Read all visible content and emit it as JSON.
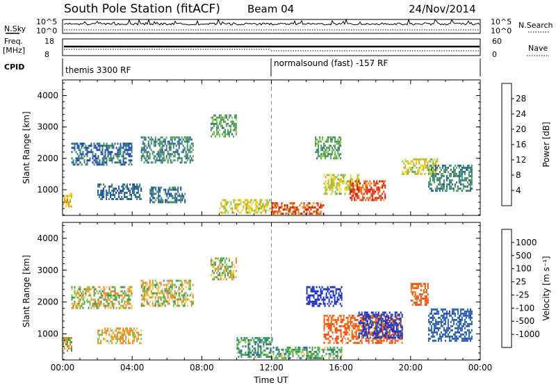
{
  "header": {
    "title": "South Pole Station (fitACF)",
    "beam": "Beam 04",
    "date": "24/Nov/2014"
  },
  "labels": {
    "nsky": "N.Sky",
    "nsearch": "N.Search",
    "freq_line1": "Freq.",
    "freq_line2": "[MHz]",
    "nave": "Nave",
    "cpid": "CPID",
    "nsky_ticks": [
      "10^5",
      "10^0"
    ],
    "nsearch_ticks": [
      "10^5",
      "10^0"
    ],
    "freq_ticks": [
      "18",
      "8"
    ],
    "nave_ticks": [
      "60",
      "0"
    ]
  },
  "cpid_programs": [
    {
      "label": "themis 3300 RF",
      "start": "00:00",
      "end": "12:00"
    },
    {
      "label": "normalsound (fast) -157 RF",
      "start": "12:00",
      "end": "24:00"
    }
  ],
  "colors": {
    "power": [
      "#1a1aff",
      "#1f3fbf",
      "#2a5f9f",
      "#3a8a6a",
      "#5aa05a",
      "#8cc840",
      "#f0d020",
      "#f5a010",
      "#f06a10",
      "#e83010",
      "#d01010"
    ],
    "velocity": [
      "#e01010",
      "#f05010",
      "#f08a20",
      "#f5c040",
      "#c8c8c0",
      "#c8c8c0",
      "#70c040",
      "#3a9a5a",
      "#2a5fae",
      "#1a2fc0"
    ]
  },
  "chart_data": [
    {
      "type": "heatmap",
      "name": "power",
      "xlabel": "",
      "ylabel": "Slant Range [km]",
      "x_range": [
        "00:00",
        "24:00"
      ],
      "xlim": [
        0,
        24
      ],
      "ylim": [
        180,
        4500
      ],
      "y_ticks": [
        1000,
        2000,
        3000,
        4000
      ],
      "colorbar": {
        "label": "Power [dB]",
        "ticks": [
          4,
          8,
          12,
          16,
          20,
          24,
          28
        ],
        "range": [
          0,
          32
        ]
      },
      "regions": [
        {
          "t": [
            0.0,
            0.5
          ],
          "r": [
            500,
            900
          ],
          "v": 20
        },
        {
          "t": [
            0.5,
            4.0
          ],
          "r": [
            1800,
            2500
          ],
          "v": 8
        },
        {
          "t": [
            2.0,
            4.5
          ],
          "r": [
            700,
            1200
          ],
          "v": 8
        },
        {
          "t": [
            4.5,
            7.5
          ],
          "r": [
            1900,
            2700
          ],
          "v": 10
        },
        {
          "t": [
            5.0,
            7.0
          ],
          "r": [
            600,
            1100
          ],
          "v": 8
        },
        {
          "t": [
            8.5,
            10.0
          ],
          "r": [
            2700,
            3400
          ],
          "v": 12
        },
        {
          "t": [
            9.0,
            12.0
          ],
          "r": [
            300,
            700
          ],
          "v": 18
        },
        {
          "t": [
            12.0,
            15.0
          ],
          "r": [
            250,
            600
          ],
          "v": 26
        },
        {
          "t": [
            14.5,
            16.0
          ],
          "r": [
            2000,
            2700
          ],
          "v": 12
        },
        {
          "t": [
            15.0,
            17.0
          ],
          "r": [
            900,
            1500
          ],
          "v": 18
        },
        {
          "t": [
            16.5,
            18.5
          ],
          "r": [
            700,
            1300
          ],
          "v": 27
        },
        {
          "t": [
            19.5,
            21.5
          ],
          "r": [
            1500,
            2000
          ],
          "v": 18
        },
        {
          "t": [
            21.0,
            23.5
          ],
          "r": [
            1000,
            1800
          ],
          "v": 10
        }
      ]
    },
    {
      "type": "heatmap",
      "name": "velocity",
      "xlabel": "Time UT",
      "ylabel": "Slant Range [km]",
      "x_range": [
        "00:00",
        "24:00"
      ],
      "x_ticks": [
        "00:00",
        "04:00",
        "08:00",
        "12:00",
        "16:00",
        "20:00",
        "00:00"
      ],
      "xlim": [
        0,
        24
      ],
      "ylim": [
        180,
        4500
      ],
      "y_ticks": [
        1000,
        2000,
        3000,
        4000
      ],
      "colorbar": {
        "label": "Velocity [m s⁻¹]",
        "ticks": [
          1000,
          500,
          100,
          25,
          -25,
          -100,
          -500,
          -1000
        ],
        "range": [
          -1000,
          1000
        ]
      },
      "regions": [
        {
          "t": [
            0.0,
            0.5
          ],
          "r": [
            500,
            900
          ],
          "v": 0
        },
        {
          "t": [
            0.5,
            4.0
          ],
          "r": [
            1800,
            2500
          ],
          "v": 0
        },
        {
          "t": [
            2.0,
            4.5
          ],
          "r": [
            700,
            1200
          ],
          "v": -80
        },
        {
          "t": [
            4.5,
            7.5
          ],
          "r": [
            1900,
            2700
          ],
          "v": 0
        },
        {
          "t": [
            8.5,
            10.0
          ],
          "r": [
            2700,
            3400
          ],
          "v": 0
        },
        {
          "t": [
            10.0,
            12.0
          ],
          "r": [
            300,
            900
          ],
          "v": 150
        },
        {
          "t": [
            12.0,
            16.0
          ],
          "r": [
            250,
            600
          ],
          "v": 120
        },
        {
          "t": [
            14.0,
            16.0
          ],
          "r": [
            1900,
            2500
          ],
          "v": 800
        },
        {
          "t": [
            15.0,
            19.5
          ],
          "r": [
            700,
            1600
          ],
          "v": -300
        },
        {
          "t": [
            17.0,
            19.5
          ],
          "r": [
            900,
            1700
          ],
          "v": 600
        },
        {
          "t": [
            20.0,
            21.0
          ],
          "r": [
            1900,
            2600
          ],
          "v": -300
        },
        {
          "t": [
            21.0,
            23.5
          ],
          "r": [
            800,
            1800
          ],
          "v": 400
        }
      ]
    }
  ]
}
